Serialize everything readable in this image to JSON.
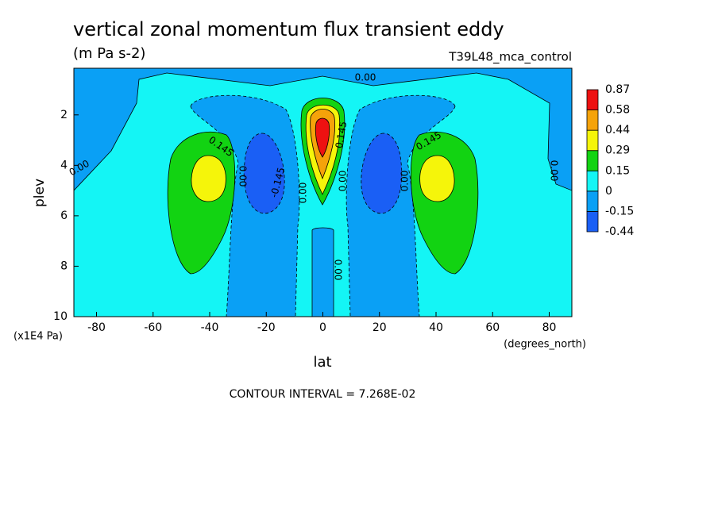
{
  "chart_data": {
    "type": "contour",
    "title": "vertical zonal momentum flux transient eddy",
    "subtitle": "(m Pa s-2)",
    "dataset": "T39L48_mca_control",
    "xlabel": "lat",
    "ylabel": "plev",
    "xunits": "(degrees_north)",
    "yunits": "(x1E4 Pa)",
    "footer": "CONTOUR INTERVAL = 7.268E-02",
    "xlim": [
      -88,
      88
    ],
    "xticks": [
      -80,
      -60,
      -40,
      -20,
      0,
      20,
      40,
      60,
      80
    ],
    "ylim": [
      10,
      0.15
    ],
    "yticks": [
      2,
      4,
      6,
      8,
      10
    ],
    "colorbar": {
      "levels": [
        -0.44,
        -0.15,
        0,
        0.15,
        0.29,
        0.44,
        0.58,
        0.87
      ],
      "colors": [
        "#1a5ff5",
        "#0aa0f5",
        "#14f5f5",
        "#12d312",
        "#f5f50a",
        "#f5a30a",
        "#ee1111"
      ]
    },
    "contour_labels": [
      "0.00",
      "0.145",
      "-0.145",
      "0.00",
      "0.00",
      "0.145",
      "0.00",
      "0.00",
      "0.145",
      "0.00",
      "0.00",
      "0.00"
    ]
  }
}
